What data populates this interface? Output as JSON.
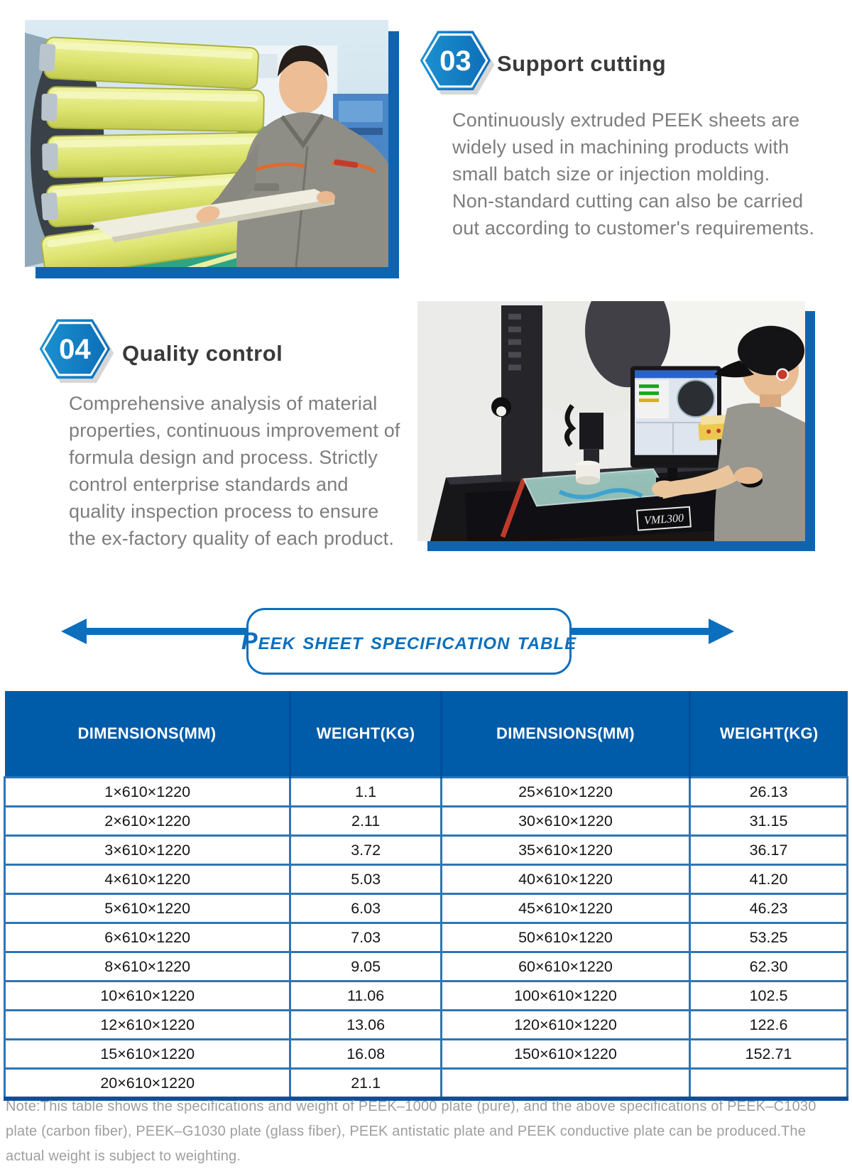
{
  "colors": {
    "table_header_bg": "#005ca9",
    "table_grid_blue": "#2e75b6",
    "table_bottom_border": "#0d4f9c",
    "accent_blue": "#0b6fbd",
    "badge_blue": "#1287cb",
    "photo_frame_blue": "#0e64b0",
    "heading_text": "#3a3a3a",
    "body_text": "#7d7d7d",
    "note_text": "#9e9e9e"
  },
  "steps": {
    "support_cutting": {
      "number": "03",
      "title": "Support cutting",
      "body": "Continuously extruded PEEK sheets are widely used in machining products with small batch size or injection molding. Non-standard cutting can also be carried out according to customer's requirements."
    },
    "quality_control": {
      "number": "04",
      "title": "Quality control",
      "body": "Comprehensive analysis of material properties, continuous improvement of formula design and process. Strictly control enterprise standards and quality inspection process to ensure the ex-factory quality of each product."
    }
  },
  "banner": {
    "label": "Peek sheet specification table"
  },
  "photos": {
    "machine_label": "VML300"
  },
  "table": {
    "headers": [
      "DIMENSIONS(MM)",
      "WEIGHT(KG)",
      "DIMENSIONS(MM)",
      "WEIGHT(KG)"
    ],
    "rows": [
      [
        "1×610×1220",
        "1.1",
        "25×610×1220",
        "26.13"
      ],
      [
        "2×610×1220",
        "2.11",
        "30×610×1220",
        "31.15"
      ],
      [
        "3×610×1220",
        "3.72",
        "35×610×1220",
        "36.17"
      ],
      [
        "4×610×1220",
        "5.03",
        "40×610×1220",
        "41.20"
      ],
      [
        "5×610×1220",
        "6.03",
        "45×610×1220",
        "46.23"
      ],
      [
        "6×610×1220",
        "7.03",
        "50×610×1220",
        "53.25"
      ],
      [
        "8×610×1220",
        "9.05",
        "60×610×1220",
        "62.30"
      ],
      [
        "10×610×1220",
        "11.06",
        "100×610×1220",
        "102.5"
      ],
      [
        "12×610×1220",
        "13.06",
        "120×610×1220",
        "122.6"
      ],
      [
        "15×610×1220",
        "16.08",
        "150×610×1220",
        "152.71"
      ],
      [
        "20×610×1220",
        "21.1",
        "",
        ""
      ]
    ]
  },
  "note": "Note:This table shows the specifications and weight of PEEK–1000 plate (pure), and the above specifications of PEEK–C1030 plate (carbon fiber), PEEK–G1030 plate (glass fiber), PEEK antistatic plate and PEEK conductive plate can be produced.The actual weight is subject to weighting."
}
